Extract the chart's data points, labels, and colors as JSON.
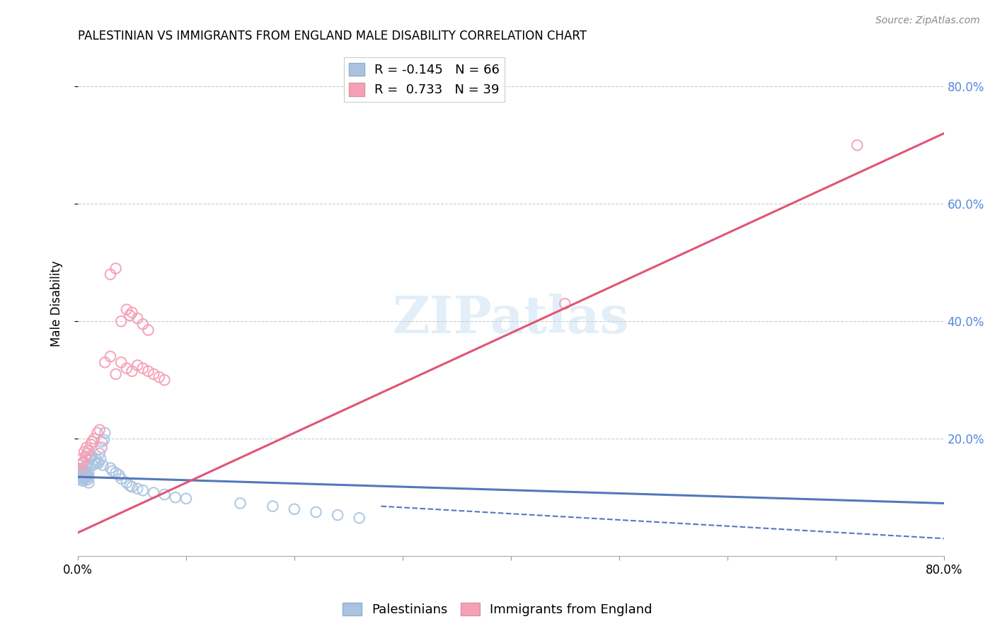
{
  "title": "PALESTINIAN VS IMMIGRANTS FROM ENGLAND MALE DISABILITY CORRELATION CHART",
  "source": "Source: ZipAtlas.com",
  "ylabel": "Male Disability",
  "xlim": [
    0.0,
    0.8
  ],
  "ylim": [
    0.0,
    0.86
  ],
  "r_palestinian": -0.145,
  "n_palestinian": 66,
  "r_england": 0.733,
  "n_england": 39,
  "color_palestinian": "#aac4e0",
  "color_england": "#f4a0b5",
  "color_line_palestinian": "#5577bb",
  "color_line_england": "#e05575",
  "color_right_axis": "#5588dd",
  "watermark_text": "ZIPatlas",
  "pal_line_x0": 0.0,
  "pal_line_y0": 0.135,
  "pal_line_x1": 0.8,
  "pal_line_y1": 0.09,
  "eng_line_x0": 0.0,
  "eng_line_y0": 0.04,
  "eng_line_x1": 0.8,
  "eng_line_y1": 0.72,
  "palestinian_x": [
    0.001,
    0.001,
    0.001,
    0.002,
    0.002,
    0.002,
    0.003,
    0.003,
    0.003,
    0.003,
    0.004,
    0.004,
    0.004,
    0.005,
    0.005,
    0.005,
    0.005,
    0.006,
    0.006,
    0.006,
    0.007,
    0.007,
    0.007,
    0.008,
    0.008,
    0.008,
    0.009,
    0.009,
    0.01,
    0.01,
    0.01,
    0.011,
    0.012,
    0.013,
    0.014,
    0.015,
    0.016,
    0.017,
    0.018,
    0.019,
    0.02,
    0.021,
    0.022,
    0.023,
    0.024,
    0.025,
    0.03,
    0.032,
    0.035,
    0.038,
    0.04,
    0.045,
    0.048,
    0.05,
    0.055,
    0.06,
    0.07,
    0.08,
    0.09,
    0.1,
    0.15,
    0.18,
    0.2,
    0.22,
    0.24,
    0.26
  ],
  "palestinian_y": [
    0.135,
    0.14,
    0.145,
    0.13,
    0.138,
    0.145,
    0.133,
    0.138,
    0.143,
    0.148,
    0.14,
    0.145,
    0.15,
    0.128,
    0.135,
    0.14,
    0.145,
    0.132,
    0.138,
    0.145,
    0.135,
    0.14,
    0.145,
    0.133,
    0.138,
    0.143,
    0.13,
    0.138,
    0.125,
    0.135,
    0.143,
    0.165,
    0.168,
    0.17,
    0.155,
    0.162,
    0.158,
    0.165,
    0.16,
    0.158,
    0.175,
    0.165,
    0.195,
    0.155,
    0.198,
    0.21,
    0.15,
    0.145,
    0.142,
    0.138,
    0.132,
    0.125,
    0.12,
    0.118,
    0.115,
    0.112,
    0.108,
    0.105,
    0.1,
    0.098,
    0.09,
    0.085,
    0.08,
    0.075,
    0.07,
    0.065
  ],
  "england_x": [
    0.001,
    0.002,
    0.003,
    0.004,
    0.005,
    0.006,
    0.007,
    0.008,
    0.009,
    0.01,
    0.012,
    0.013,
    0.015,
    0.018,
    0.02,
    0.022,
    0.025,
    0.03,
    0.035,
    0.04,
    0.045,
    0.05,
    0.055,
    0.06,
    0.065,
    0.07,
    0.075,
    0.08,
    0.03,
    0.035,
    0.04,
    0.045,
    0.048,
    0.05,
    0.055,
    0.06,
    0.065,
    0.72,
    0.45
  ],
  "england_y": [
    0.155,
    0.145,
    0.165,
    0.158,
    0.16,
    0.178,
    0.17,
    0.185,
    0.175,
    0.18,
    0.19,
    0.195,
    0.2,
    0.21,
    0.215,
    0.185,
    0.33,
    0.34,
    0.31,
    0.33,
    0.32,
    0.315,
    0.325,
    0.32,
    0.315,
    0.31,
    0.305,
    0.3,
    0.48,
    0.49,
    0.4,
    0.42,
    0.41,
    0.415,
    0.405,
    0.395,
    0.385,
    0.7,
    0.43
  ]
}
